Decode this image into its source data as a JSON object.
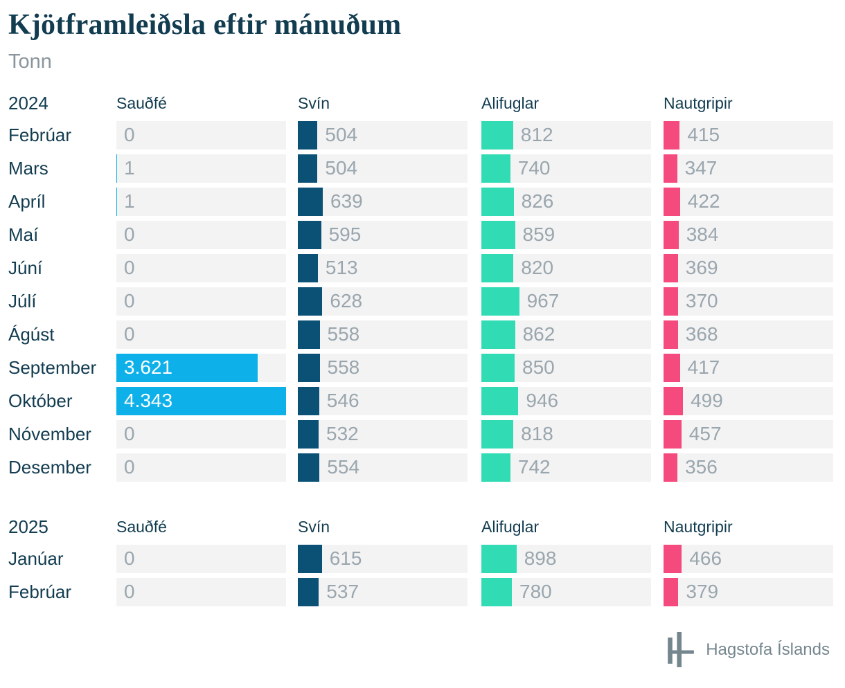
{
  "chart_data": {
    "type": "bar",
    "title": "Kjötframleiðsla eftir mánuðum",
    "unit": "Tonn",
    "orientation": "horizontal",
    "value_axis_max": 4343,
    "number_format": "icelandic-thousands-dot",
    "groups": [
      {
        "year": "2024",
        "categories": [
          "Febrúar",
          "Mars",
          "Apríl",
          "Maí",
          "Júní",
          "Júlí",
          "Ágúst",
          "September",
          "Október",
          "Nóvember",
          "Desember"
        ],
        "series": [
          {
            "name": "Sauðfé",
            "values": [
              0,
              1,
              1,
              0,
              0,
              0,
              0,
              3621,
              4343,
              0,
              0
            ]
          },
          {
            "name": "Svín",
            "values": [
              504,
              504,
              639,
              595,
              513,
              628,
              558,
              558,
              546,
              532,
              554
            ]
          },
          {
            "name": "Alifuglar",
            "values": [
              812,
              740,
              826,
              859,
              820,
              967,
              862,
              850,
              946,
              818,
              742
            ]
          },
          {
            "name": "Nautgripir",
            "values": [
              415,
              347,
              422,
              384,
              369,
              370,
              368,
              417,
              499,
              457,
              356
            ]
          }
        ]
      },
      {
        "year": "2025",
        "categories": [
          "Janúar",
          "Febrúar"
        ],
        "series": [
          {
            "name": "Sauðfé",
            "values": [
              0,
              0
            ]
          },
          {
            "name": "Svín",
            "values": [
              615,
              537
            ]
          },
          {
            "name": "Alifuglar",
            "values": [
              898,
              780
            ]
          },
          {
            "name": "Nautgripir",
            "values": [
              466,
              379
            ]
          }
        ]
      }
    ]
  },
  "colors": {
    "series": [
      "#0db0e9",
      "#0b5176",
      "#31dcb5",
      "#f54a7e"
    ],
    "track": "#f3f3f3",
    "value_text": "#9aa6ae",
    "value_text_inside": "#ffffff",
    "label_text": "#123c50",
    "subtitle_text": "#8b969c",
    "logo": "#75868f"
  },
  "footer": {
    "brand": "Hagstofa Íslands"
  }
}
